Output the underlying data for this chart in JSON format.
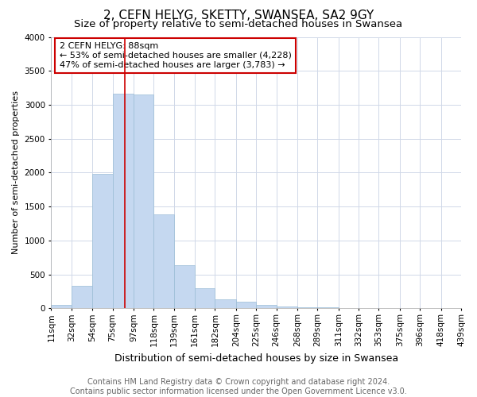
{
  "title": "2, CEFN HELYG, SKETTY, SWANSEA, SA2 9GY",
  "subtitle": "Size of property relative to semi-detached houses in Swansea",
  "xlabel": "Distribution of semi-detached houses by size in Swansea",
  "ylabel": "Number of semi-detached properties",
  "footer_line1": "Contains HM Land Registry data © Crown copyright and database right 2024.",
  "footer_line2": "Contains public sector information licensed under the Open Government Licence v3.0.",
  "annotation_title": "2 CEFN HELYG: 88sqm",
  "annotation_line2": "← 53% of semi-detached houses are smaller (4,228)",
  "annotation_line3": "47% of semi-detached houses are larger (3,783) →",
  "property_sqm": 88,
  "bin_labels": [
    "11sqm",
    "32sqm",
    "54sqm",
    "75sqm",
    "97sqm",
    "118sqm",
    "139sqm",
    "161sqm",
    "182sqm",
    "204sqm",
    "225sqm",
    "246sqm",
    "268sqm",
    "289sqm",
    "311sqm",
    "332sqm",
    "353sqm",
    "375sqm",
    "396sqm",
    "418sqm",
    "439sqm"
  ],
  "bin_edges": [
    11,
    32,
    54,
    75,
    97,
    118,
    139,
    161,
    182,
    204,
    225,
    246,
    268,
    289,
    311,
    332,
    353,
    375,
    396,
    418,
    439
  ],
  "bar_values": [
    50,
    330,
    1980,
    3160,
    3150,
    1390,
    640,
    300,
    140,
    100,
    50,
    30,
    20,
    20,
    5,
    2,
    1,
    1,
    0,
    0
  ],
  "bar_color": "#c5d8f0",
  "bar_edge_color": "#9bbdd6",
  "property_line_color": "#cc0000",
  "ylim": [
    0,
    4000
  ],
  "yticks": [
    0,
    500,
    1000,
    1500,
    2000,
    2500,
    3000,
    3500,
    4000
  ],
  "annotation_box_facecolor": "#ffffff",
  "annotation_box_edgecolor": "#cc0000",
  "bg_color": "#ffffff",
  "plot_bg_color": "#ffffff",
  "grid_color": "#d0d8e8",
  "title_fontsize": 11,
  "subtitle_fontsize": 9.5,
  "xlabel_fontsize": 9,
  "ylabel_fontsize": 8,
  "tick_fontsize": 7.5,
  "annotation_fontsize": 8,
  "footer_fontsize": 7
}
